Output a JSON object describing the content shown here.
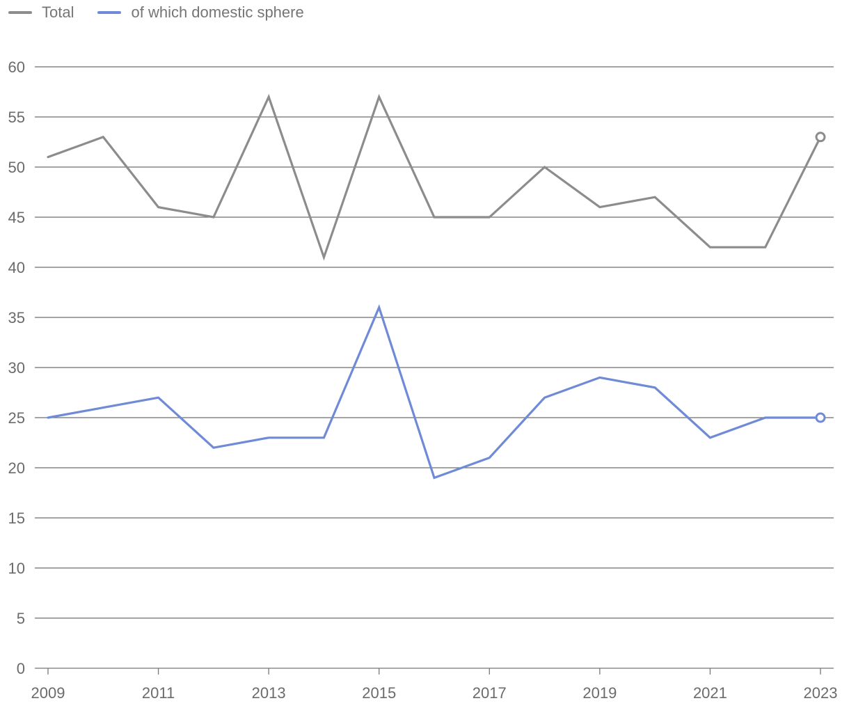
{
  "chart_data": {
    "type": "line",
    "title": "",
    "xlabel": "",
    "ylabel": "",
    "x": [
      2009,
      2010,
      2011,
      2012,
      2013,
      2014,
      2015,
      2016,
      2017,
      2018,
      2019,
      2020,
      2021,
      2022,
      2023
    ],
    "x_tick_labels": [
      "2009",
      "2011",
      "2013",
      "2015",
      "2017",
      "2019",
      "2021",
      "2023"
    ],
    "y_ticks": [
      0,
      5,
      10,
      15,
      20,
      25,
      30,
      35,
      40,
      45,
      50,
      55,
      60
    ],
    "ylim": [
      0,
      60
    ],
    "grid": "horizontal",
    "legend_position": "top-left",
    "series": [
      {
        "name": "Total",
        "color": "#8c8c8c",
        "values": [
          51,
          53,
          46,
          45,
          57,
          41,
          57,
          45,
          45,
          50,
          46,
          47,
          42,
          42,
          53
        ]
      },
      {
        "name": "of which domestic sphere",
        "color": "#6f8ad6",
        "values": [
          25,
          26,
          27,
          22,
          23,
          23,
          36,
          19,
          21,
          27,
          29,
          28,
          23,
          25,
          25
        ]
      }
    ]
  }
}
